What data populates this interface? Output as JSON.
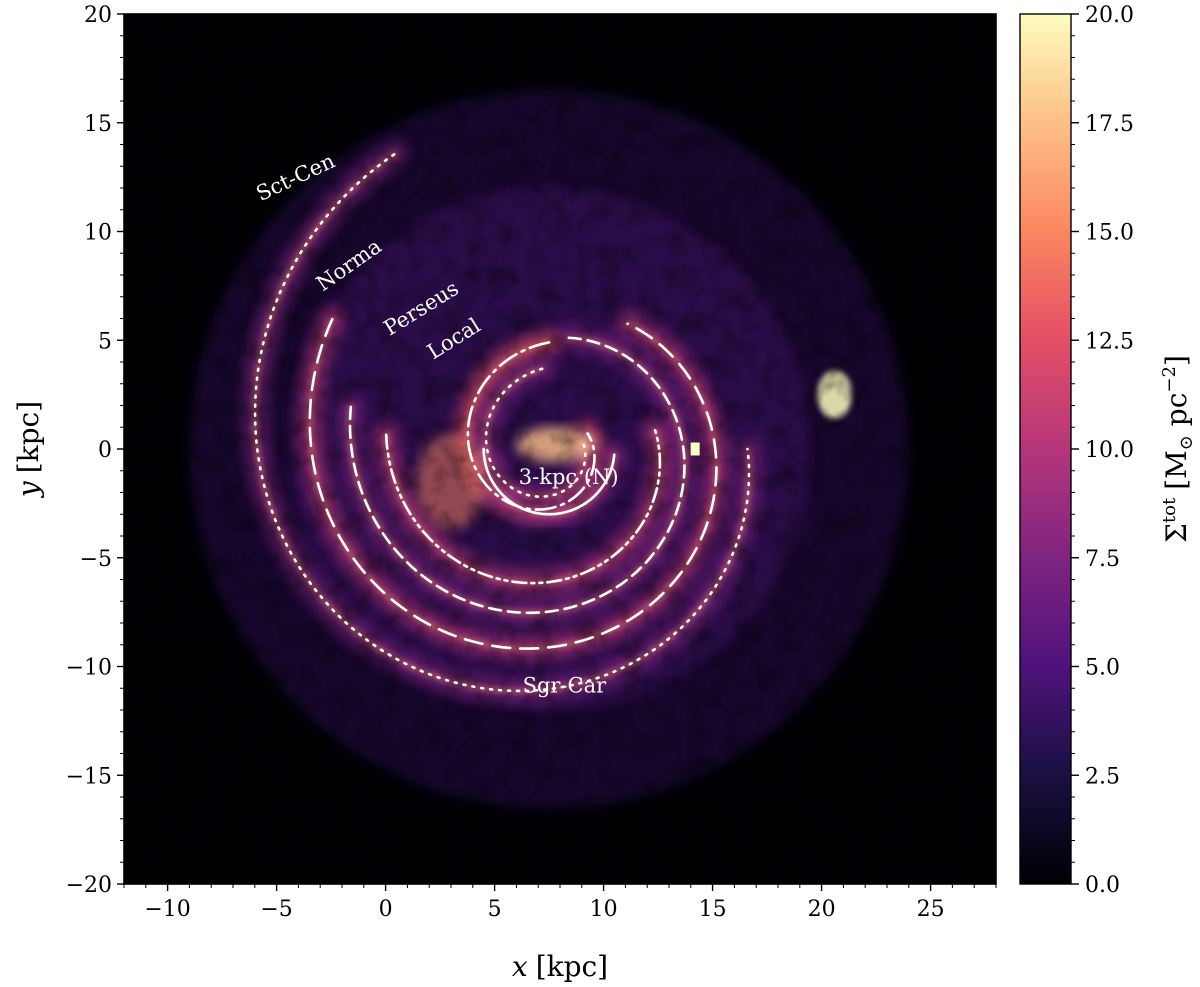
{
  "chart_data": {
    "type": "heatmap",
    "title": "",
    "xlabel": {
      "var": "x",
      "unit": "[kpc]"
    },
    "ylabel": {
      "var": "y",
      "unit": "[kpc]"
    },
    "xlim": [
      -12,
      28
    ],
    "ylim": [
      -20,
      20
    ],
    "xticks": [
      -10,
      -5,
      0,
      5,
      10,
      15,
      20,
      25
    ],
    "xtick_labels": [
      "−10",
      "−5",
      "0",
      "5",
      "10",
      "15",
      "20",
      "25"
    ],
    "yticks": [
      -20,
      -15,
      -10,
      -5,
      0,
      5,
      10,
      15,
      20
    ],
    "ytick_labels": [
      "−20",
      "−15",
      "−10",
      "−5",
      "0",
      "5",
      "10",
      "15",
      "20"
    ],
    "colormap": "magma",
    "colorbar": {
      "label_main": "Σ",
      "label_sup": "tot",
      "label_unit": "[M",
      "label_sun": "⊙",
      "label_unit2": " pc",
      "label_exp": "−2",
      "label_close": "]",
      "min": 0,
      "max": 20,
      "ticks": [
        0,
        2.5,
        5,
        7.5,
        10,
        12.5,
        15,
        17.5,
        20
      ],
      "tick_labels": [
        "0.0",
        "2.5",
        "5.0",
        "7.5",
        "10.0",
        "12.5",
        "15.0",
        "17.5",
        "20.0"
      ]
    },
    "map_center": [
      7.5,
      0
    ],
    "sun_marker": {
      "x": 14.2,
      "y": 0
    },
    "arms": [
      {
        "name": "Sct-Cen",
        "style": "dotted",
        "cx": 7.5,
        "cy": 0,
        "r0": 15.3,
        "th0": 117.7,
        "th1": 360,
        "pitch": 7
      },
      {
        "name": "Norma",
        "style": "dashed",
        "cx": 7.5,
        "cy": 0,
        "r0": 11.6,
        "th0": 149,
        "th1": 418,
        "pitch": 6.5
      },
      {
        "name": "Perseus",
        "style": "dashed-fine",
        "cx": 7.5,
        "cy": 0,
        "r0": 9.3,
        "th0": 168,
        "th1": 440,
        "pitch": 7
      },
      {
        "name": "Local",
        "style": "dashdotdot",
        "cx": 7.5,
        "cy": 0,
        "r0": 7.5,
        "th0": 175,
        "th1": 370,
        "pitch": 7
      },
      {
        "name": "Sgr-Car",
        "style": "dashdot",
        "cx": 7.5,
        "cy": 0,
        "r0": 4.9,
        "th0": 90,
        "th1": 382,
        "pitch": 10.5
      },
      {
        "name": "",
        "style": "dotted",
        "cx": 7.5,
        "cy": 0,
        "r0": 3.7,
        "th0": 95,
        "th1": 370,
        "pitch": 10
      },
      {
        "name": "3-kpc (N)",
        "style": "solid",
        "cx": 7.5,
        "cy": 0,
        "r0": 3.0,
        "th0": 180,
        "th1": 355,
        "pitch": 0
      }
    ],
    "arm_labels": [
      {
        "text": "Sct-Cen",
        "x": -4.0,
        "y": 12.2,
        "rotate": -25
      },
      {
        "text": "Norma",
        "x": -1.5,
        "y": 8.2,
        "rotate": -35
      },
      {
        "text": "Perseus",
        "x": 1.8,
        "y": 6.2,
        "rotate": -32
      },
      {
        "text": "Local",
        "x": 3.3,
        "y": 4.8,
        "rotate": -32
      },
      {
        "text": "3-kpc (N)",
        "x": 8.4,
        "y": -1.6,
        "rotate": 0
      },
      {
        "text": "Sgr-Car",
        "x": 8.2,
        "y": -11.2,
        "rotate": 0
      }
    ]
  }
}
